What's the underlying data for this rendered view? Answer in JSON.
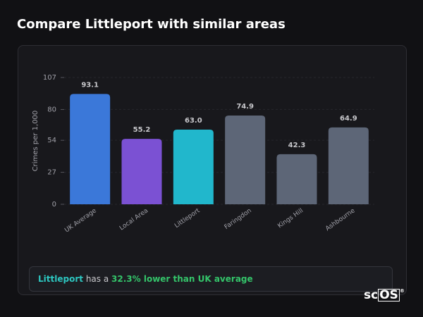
{
  "page_title": "Compare Littleport with similar areas",
  "chart_data": {
    "type": "bar",
    "y_label": "Crimes per 1,000",
    "categories": [
      "UK Average",
      "Local Area",
      "Littleport",
      "Faringdon",
      "Kings Hill",
      "Ashbourne"
    ],
    "values": [
      93.1,
      55.2,
      63.0,
      74.9,
      42.3,
      64.9
    ],
    "value_labels": [
      "93.1",
      "55.2",
      "63.0",
      "74.9",
      "42.3",
      "64.9"
    ],
    "colors": [
      "#3b78d9",
      "#7b51d3",
      "#21b7cc",
      "#5d6677",
      "#5d6677",
      "#5d6677"
    ],
    "ylim": [
      0,
      107
    ],
    "yticks": [
      0,
      27,
      54,
      80,
      107
    ],
    "grid": true
  },
  "summary": {
    "area": "Littleport",
    "text": "has a",
    "highlight": "32.3% lower than UK average"
  },
  "logo": {
    "main": "sc",
    "box": "OS",
    "mark": "®"
  }
}
